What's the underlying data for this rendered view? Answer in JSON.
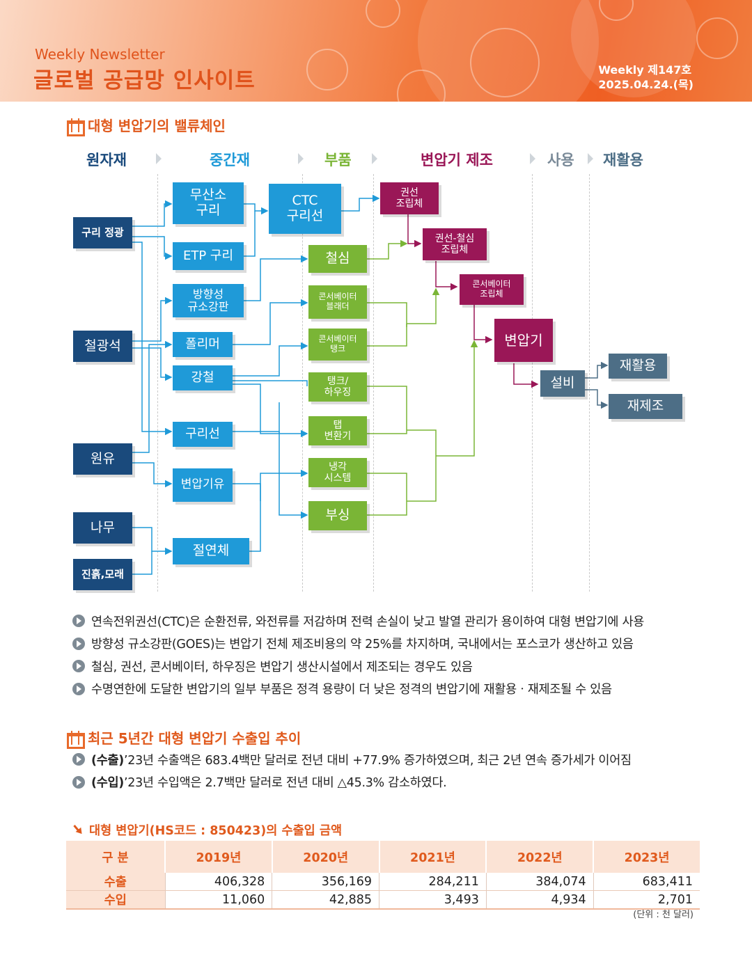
{
  "header": {
    "subtitle": "Weekly Newsletter",
    "title": "글로벌 공급망 인사이트",
    "issue": "Weekly 제147호",
    "date": "2025.04.24.(목)"
  },
  "section1": {
    "title": "대형 변압기의 밸류체인",
    "stages": [
      "원자재",
      "중간재",
      "부품",
      "변압기 제조",
      "사용",
      "재활용"
    ],
    "raw": [
      "구리 정광",
      "철광석",
      "원유",
      "나무",
      "진흙,모래"
    ],
    "intermediate": [
      "무산소\n구리",
      "ETP 구리",
      "방향성\n규소강판",
      "폴리머",
      "강철",
      "구리선",
      "변압기유",
      "절연체"
    ],
    "ctc": "CTC\n구리선",
    "parts": [
      "철심",
      "콘서베이터\n블래더",
      "콘서베이터\n탱크",
      "탱크/\n하우징",
      "탭\n변환기",
      "냉각\n시스템",
      "부싱"
    ],
    "manufacturing": [
      "권선\n조립체",
      "권선-철심\n조립체",
      "콘서베이터\n조립체",
      "변압기"
    ],
    "use": "설비",
    "recycle": [
      "재활용",
      "재제조"
    ],
    "bullets": [
      "연속전위권선(CTC)은 순환전류, 와전류를 저감하며 전력 손실이 낮고 발열 관리가 용이하여 대형 변압기에 사용",
      "방향성 규소강판(GOES)는 변압기 전체 제조비용의 약 25%를 차지하며, 국내에서는 포스코가 생산하고 있음",
      "철심, 권선, 콘서베이터, 하우징은 변압기 생산시설에서 제조되는 경우도 있음",
      "수명연한에 도달한 변압기의 일부 부품은 정격 용량이 더 낮은 정격의 변압기에 재활용ㆍ재제조될 수 있음"
    ]
  },
  "section2": {
    "title": "최근 5년간 대형 변압기 수출입 추이",
    "bullets": [
      {
        "label": "(수출)",
        "text": " ’23년 수출액은 683.4백만 달러로 전년 대비 +77.9% 증가하였으며, 최근 2년 연속 증가세가 이어짐"
      },
      {
        "label": "(수입)",
        "text": " ’23년 수입액은 2.7백만 달러로 전년 대비 △45.3% 감소하였다."
      }
    ]
  },
  "table": {
    "title": "대형 변압기(HS코드 : 850423)의 수출입 금액",
    "corner": "구 분",
    "years": [
      "2019년",
      "2020년",
      "2021년",
      "2022년",
      "2023년"
    ],
    "rows": [
      {
        "label": "수출",
        "values": [
          "406,328",
          "356,169",
          "284,211",
          "384,074",
          "683,411"
        ]
      },
      {
        "label": "수입",
        "values": [
          "11,060",
          "42,885",
          "3,493",
          "4,934",
          "2,701"
        ]
      }
    ],
    "unit": "(단위 : 천 달러)"
  },
  "colors": {
    "accent": "#e05a1d",
    "navy": "#1a4a7c",
    "blue": "#1f9ad8",
    "green": "#7ab536",
    "magenta": "#9a1757",
    "slate": "#4d6e86"
  }
}
